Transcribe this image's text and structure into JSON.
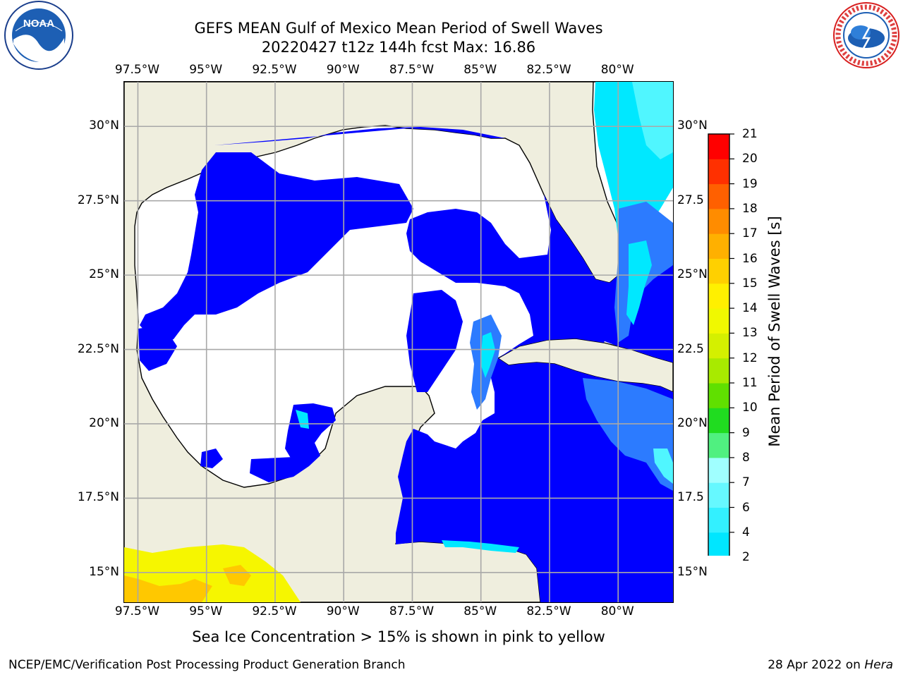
{
  "title": {
    "line1": "GEFS MEAN Gulf of Mexico Mean Period of Swell Waves",
    "line2": "20220427 t12z 144h fcst   Max: 16.86"
  },
  "axes": {
    "lon_labels": [
      "97.5°W",
      "95°W",
      "92.5°W",
      "90°W",
      "87.5°W",
      "85°W",
      "82.5°W",
      "80°W"
    ],
    "lon_values": [
      -97.5,
      -95,
      -92.5,
      -90,
      -87.5,
      -85,
      -82.5,
      -80
    ],
    "lat_labels_left": [
      "30°N",
      "27.5°N",
      "25°N",
      "22.5°N",
      "20°N",
      "17.5°N",
      "15°N"
    ],
    "lat_labels_right": [
      "30°N",
      "27.5",
      "25°N",
      "22.5",
      "20°N",
      "17.5",
      "15°N"
    ],
    "lat_values": [
      30,
      27.5,
      25,
      22.5,
      20,
      17.5,
      15
    ],
    "lon_range": [
      -98,
      -78
    ],
    "lat_range": [
      14,
      31.5
    ],
    "grid": true
  },
  "colorbar": {
    "label": "Mean Period of Swell Waves [s]",
    "ticks": [
      "21",
      "20",
      "19",
      "18",
      "17",
      "16",
      "15",
      "14",
      "13",
      "12",
      "11",
      "10",
      "9",
      "8",
      "7",
      "6",
      "4",
      "2"
    ],
    "colors_bottom_to_top": [
      "#0a46ff",
      "#00e6ff",
      "#33f0ff",
      "#66f8ff",
      "#a0ffff",
      "#50f080",
      "#20dc20",
      "#60e000",
      "#a8ea00",
      "#d4f000",
      "#f0f800",
      "#fff000",
      "#ffd000",
      "#ffb000",
      "#ff8c00",
      "#ff6000",
      "#ff3000",
      "#ff0000"
    ],
    "extend": "min"
  },
  "map_colors": {
    "land": "#efeede",
    "ocean_low": "#ffffff",
    "swell_2_4": "#0000ff",
    "swell_4_6": "#2c7bff",
    "swell_6_7": "#00e8ff",
    "swell_7_8": "#50f6ff",
    "ice_yellow": "#f6f600",
    "ice_orange": "#ffc800"
  },
  "note": "Sea Ice Concentration > 15% is shown in pink to yellow",
  "footer": {
    "left": "NCEP/EMC/Verification Post Processing Product Generation Branch",
    "right_date": "28 Apr 2022 on ",
    "right_host": "Hera"
  },
  "logos": {
    "noaa_text": "NOAA",
    "nws_text": "NATIONAL WEATHER SERVICE"
  }
}
